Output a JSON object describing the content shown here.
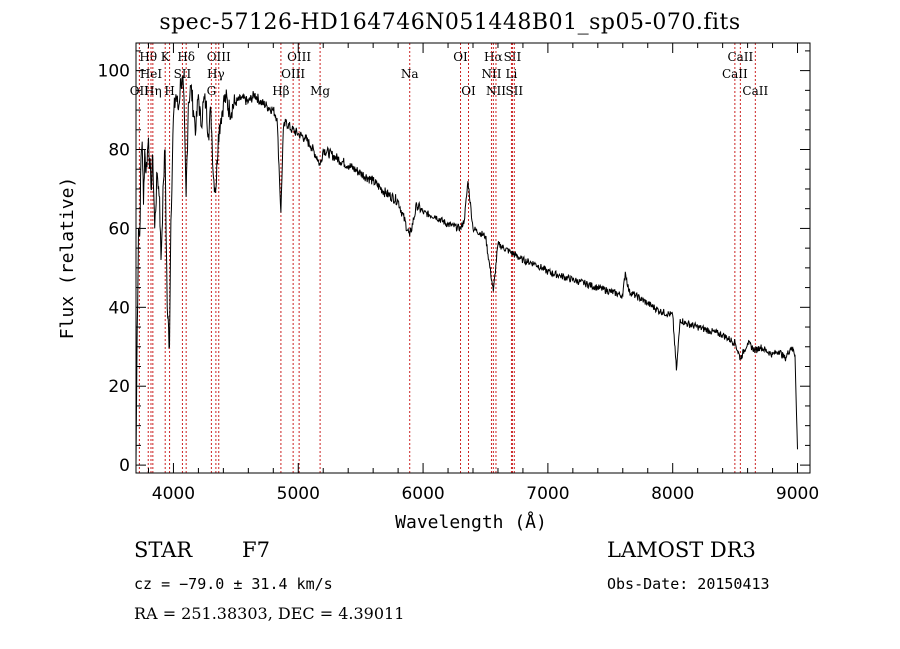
{
  "chart_data": {
    "type": "line",
    "title": "spec-57126-HD164746N051448B01_sp05-070.fits",
    "xlabel": "Wavelength (Å)",
    "ylabel": "Flux (relative)",
    "xlim": [
      3700,
      9100
    ],
    "ylim": [
      -2,
      107
    ],
    "x_ticks": [
      4000,
      5000,
      6000,
      7000,
      8000,
      9000
    ],
    "y_ticks": [
      0,
      20,
      40,
      60,
      80,
      100
    ],
    "grid": false,
    "spectrum": {
      "x": [
        3700,
        3710,
        3720,
        3730,
        3740,
        3750,
        3760,
        3770,
        3780,
        3800,
        3820,
        3835,
        3850,
        3870,
        3889,
        3900,
        3920,
        3933,
        3950,
        3968,
        3980,
        4000,
        4020,
        4040,
        4060,
        4080,
        4101,
        4120,
        4140,
        4160,
        4180,
        4200,
        4220,
        4240,
        4260,
        4280,
        4300,
        4310,
        4320,
        4340,
        4360,
        4380,
        4400,
        4420,
        4450,
        4500,
        4550,
        4600,
        4650,
        4700,
        4750,
        4800,
        4830,
        4861,
        4880,
        4900,
        4950,
        5000,
        5050,
        5100,
        5150,
        5175,
        5200,
        5300,
        5400,
        5500,
        5600,
        5700,
        5800,
        5893,
        5950,
        6000,
        6100,
        6200,
        6300,
        6330,
        6360,
        6400,
        6500,
        6563,
        6600,
        6700,
        6800,
        6900,
        7000,
        7100,
        7200,
        7300,
        7400,
        7500,
        7600,
        7620,
        7650,
        7700,
        7800,
        7900,
        8000,
        8030,
        8060,
        8100,
        8200,
        8300,
        8400,
        8500,
        8542,
        8600,
        8662,
        8700,
        8800,
        8850,
        8900,
        8950,
        8980,
        9000
      ],
      "y": [
        0,
        35,
        60,
        58,
        78,
        82,
        66,
        80,
        74,
        83,
        70,
        78,
        60,
        74,
        68,
        52,
        72,
        80,
        40,
        30,
        62,
        88,
        94,
        90,
        98,
        96,
        68,
        92,
        96,
        90,
        85,
        94,
        86,
        92,
        92,
        84,
        90,
        82,
        73,
        70,
        84,
        88,
        92,
        93,
        90,
        92,
        93,
        92,
        94,
        92,
        91,
        90,
        88,
        64,
        85,
        87,
        85,
        84,
        83,
        81,
        78,
        76,
        80,
        78,
        76,
        74,
        72,
        69,
        67,
        58,
        66,
        64,
        63,
        61,
        60,
        62,
        72,
        60,
        58,
        44,
        56,
        54,
        52,
        51,
        49,
        48,
        47,
        46,
        45,
        44,
        43,
        49,
        44,
        43,
        41,
        39,
        38,
        24,
        37,
        36,
        35,
        34,
        33,
        31,
        27,
        31,
        29,
        30,
        28,
        29,
        27,
        30,
        28,
        4
      ]
    },
    "line_markers": [
      {
        "label": "Hθ",
        "wavelength": 3798,
        "row": 1
      },
      {
        "label": "HeI",
        "wavelength": 3820,
        "row": 2
      },
      {
        "label": "OII",
        "wavelength": 3727,
        "row": 3
      },
      {
        "label": "Hη",
        "wavelength": 3835,
        "row": 3
      },
      {
        "label": "K",
        "wavelength": 3934,
        "row": 1
      },
      {
        "label": "SII",
        "wavelength": 4072,
        "row": 2
      },
      {
        "label": "H",
        "wavelength": 3969,
        "row": 3
      },
      {
        "label": "Hδ",
        "wavelength": 4102,
        "row": 1
      },
      {
        "label": "OIII",
        "wavelength": 4363,
        "row": 1
      },
      {
        "label": "Hγ",
        "wavelength": 4340,
        "row": 2
      },
      {
        "label": "G",
        "wavelength": 4304,
        "row": 3
      },
      {
        "label": "Hβ",
        "wavelength": 4861,
        "row": 3
      },
      {
        "label": "OIII",
        "wavelength": 5007,
        "row": 1
      },
      {
        "label": "OIII",
        "wavelength": 4959,
        "row": 2
      },
      {
        "label": "Mg",
        "wavelength": 5175,
        "row": 3
      },
      {
        "label": "Na",
        "wavelength": 5893,
        "row": 2
      },
      {
        "label": "OI",
        "wavelength": 6300,
        "row": 1
      },
      {
        "label": "OI",
        "wavelength": 6364,
        "row": 3
      },
      {
        "label": "Hα",
        "wavelength": 6563,
        "row": 1
      },
      {
        "label": "NII",
        "wavelength": 6548,
        "row": 2
      },
      {
        "label": "NII",
        "wavelength": 6584,
        "row": 3
      },
      {
        "label": "SII",
        "wavelength": 6716,
        "row": 1
      },
      {
        "label": "Li",
        "wavelength": 6708,
        "row": 2
      },
      {
        "label": "SII",
        "wavelength": 6731,
        "row": 3
      },
      {
        "label": "CaII",
        "wavelength": 8542,
        "row": 1
      },
      {
        "label": "CaII",
        "wavelength": 8498,
        "row": 2
      },
      {
        "label": "CaII",
        "wavelength": 8662,
        "row": 3
      }
    ]
  },
  "info": {
    "object_class": "STAR",
    "subclass": "F7",
    "survey": "LAMOST DR3",
    "cz": "cz = −79.0 ± 31.4 km/s",
    "obs_date": "Obs-Date: 20150413",
    "coords": "RA = 251.38303, DEC =   4.39011"
  }
}
